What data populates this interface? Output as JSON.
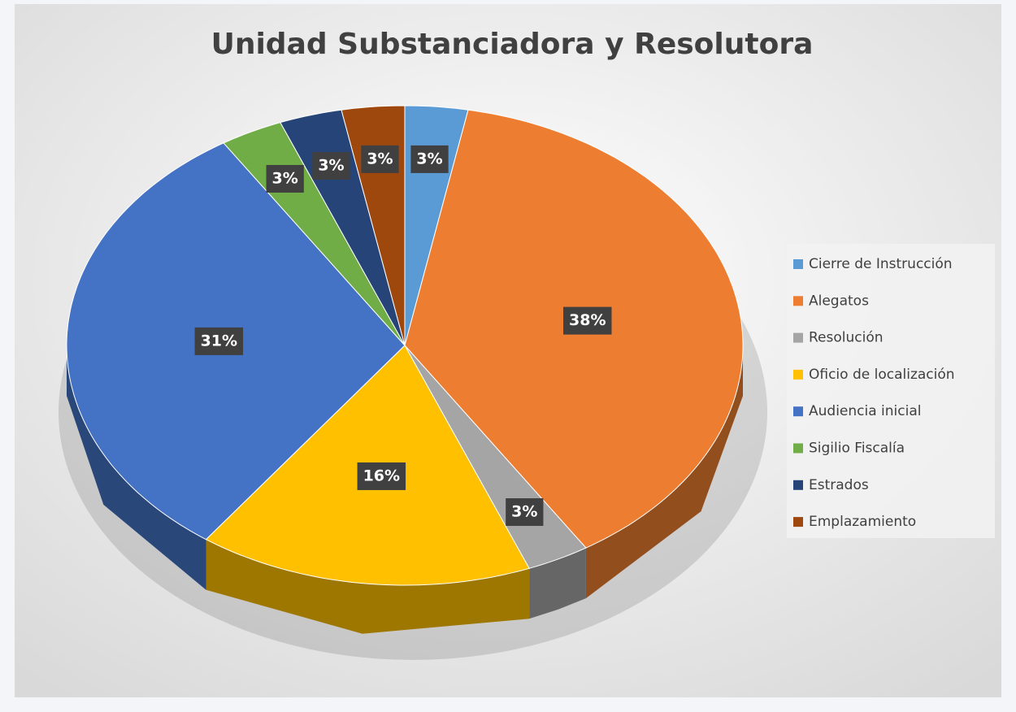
{
  "chart_data": {
    "type": "pie",
    "title": "Unidad Substanciadora y Resolutora",
    "categories": [
      "Cierre de Instrucción",
      "Alegatos",
      "Resolución",
      "Oficio de localización",
      "Audiencia inicial",
      "Sigilio Fiscalía",
      "Estrados",
      "Emplazamiento"
    ],
    "values": [
      3,
      38,
      3,
      16,
      31,
      3,
      3,
      3
    ],
    "value_labels": [
      "3%",
      "38%",
      "3%",
      "16%",
      "31%",
      "3%",
      "3%",
      "3%"
    ],
    "colors": [
      "#5b9bd5",
      "#ed7d31",
      "#a5a5a5",
      "#ffc000",
      "#4472c4",
      "#70ad47",
      "#264478",
      "#9e480e"
    ],
    "legend": "right"
  }
}
